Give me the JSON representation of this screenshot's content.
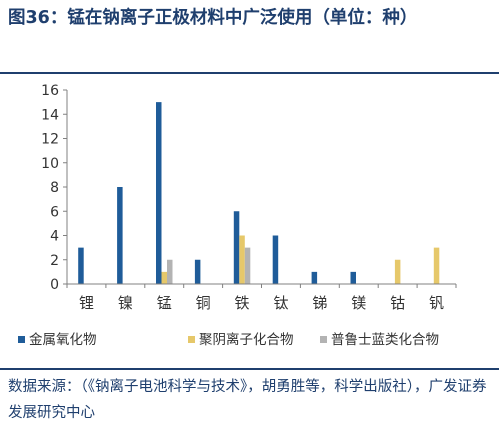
{
  "figure": {
    "title": "图36：锰在钠离子正极材料中广泛使用（单位：种）",
    "source": "数据来源：（《钠离子电池科学与技术》，胡勇胜等，科学出版社），广发证券发展研究中心"
  },
  "chart_data": {
    "type": "bar",
    "categories": [
      "锂",
      "镍",
      "锰",
      "铜",
      "铁",
      "钛",
      "锑",
      "镁",
      "钴",
      "钒"
    ],
    "series": [
      {
        "name": "金属氧化物",
        "values": [
          3,
          8,
          15,
          2,
          6,
          4,
          1,
          1,
          0,
          0
        ],
        "color": "#1f5c99"
      },
      {
        "name": "聚阴离子化合物",
        "values": [
          0,
          0,
          1,
          0,
          4,
          0,
          0,
          0,
          2,
          3
        ],
        "color": "#e6c86a"
      },
      {
        "name": "普鲁士蓝类化合物",
        "values": [
          0,
          0,
          2,
          0,
          3,
          0,
          0,
          0,
          0,
          0
        ],
        "color": "#b3b3b3"
      }
    ],
    "ylim": [
      0,
      16
    ],
    "yticks": [
      "0",
      "2",
      "4",
      "6",
      "8",
      "10",
      "12",
      "14",
      "16"
    ],
    "grid": false,
    "legend": "bottom"
  }
}
